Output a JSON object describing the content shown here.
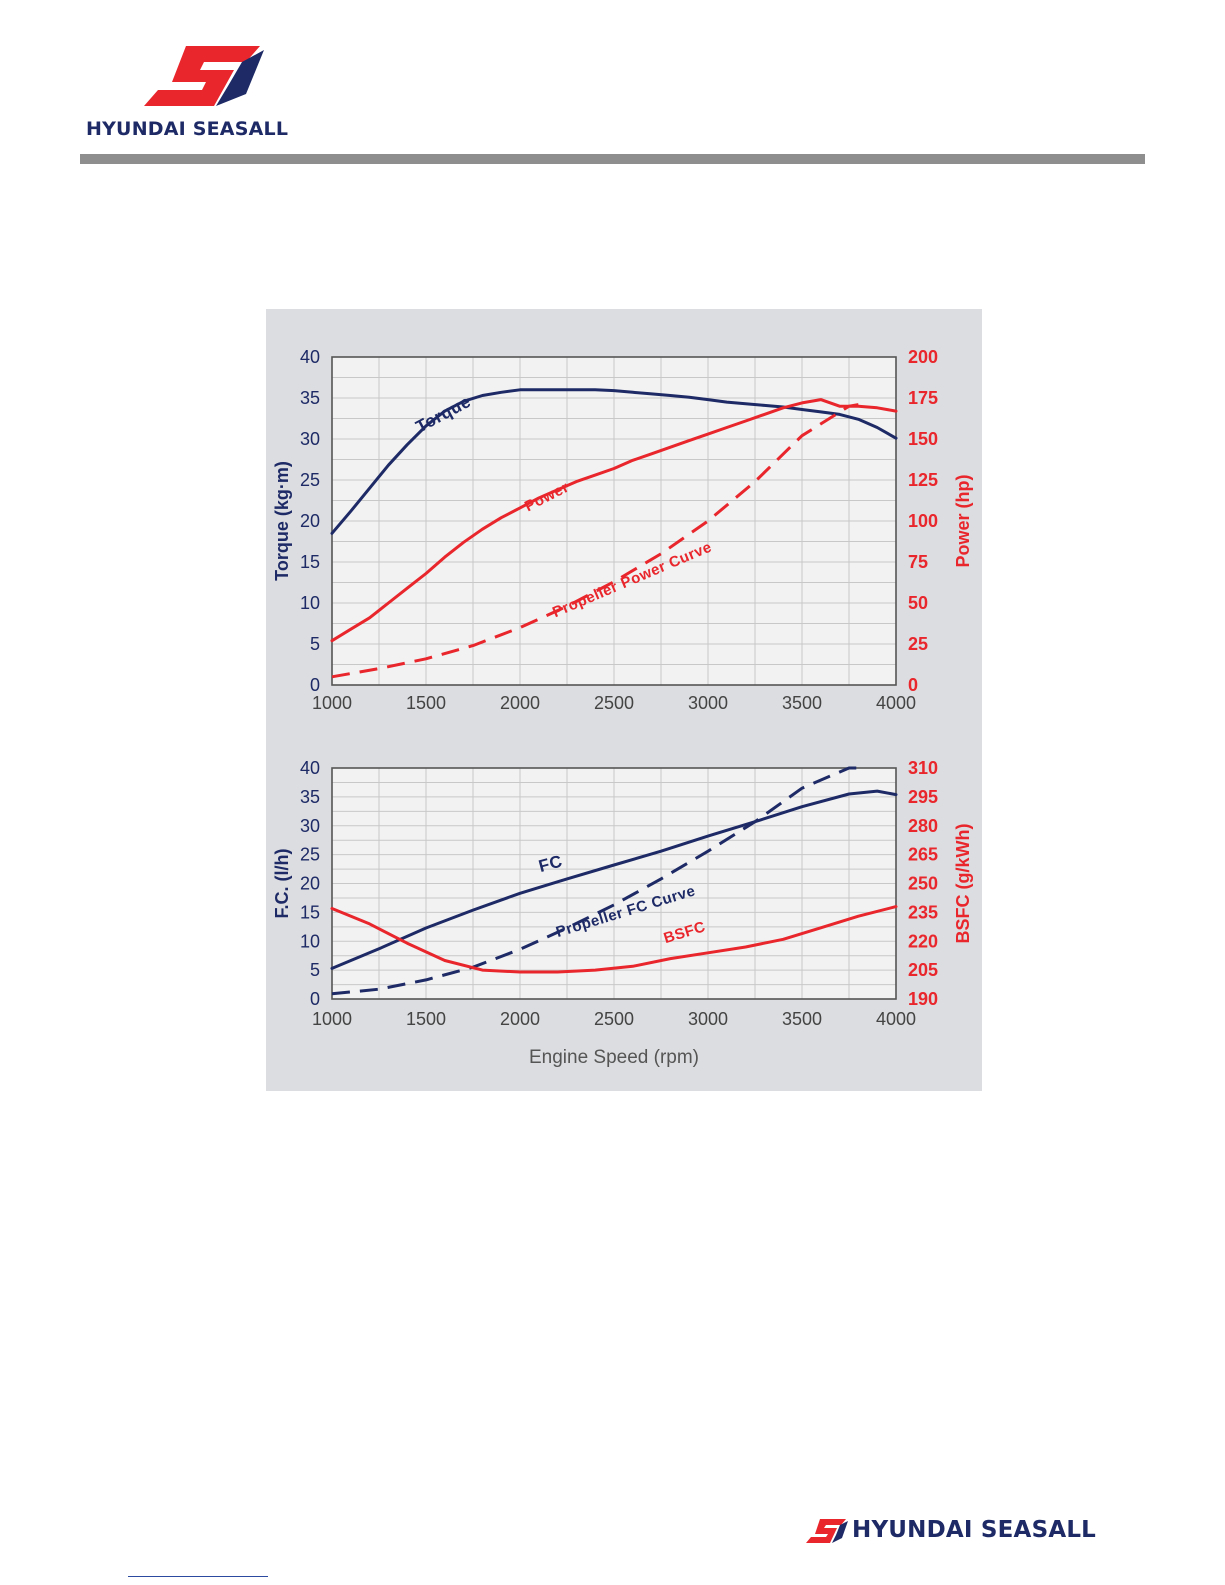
{
  "header": {
    "brand": "HYUNDAI SEASALL"
  },
  "footer": {
    "brand": "HYUNDAI SEASALL"
  },
  "colors": {
    "navy": "#1d2a66",
    "red": "#e8262c",
    "logo_red": "#e8262c",
    "panel_bg": "#dcdde0",
    "plot_bg": "#f2f2f2",
    "grid": "#c8c8c8"
  },
  "icons": {
    "top_logo": "seasall-emblem-icon",
    "bottom_logo": "seasall-emblem-icon"
  },
  "chart_data": [
    {
      "type": "line",
      "x_ticks": [
        "1000",
        "1500",
        "2000",
        "2500",
        "3000",
        "3500",
        "4000"
      ],
      "xlim": [
        1000,
        4000
      ],
      "y_left_label": "Torque (kg·m)",
      "y_left_ticks": [
        "0",
        "5",
        "10",
        "15",
        "20",
        "25",
        "30",
        "35",
        "40"
      ],
      "y_left_lim": [
        0,
        40
      ],
      "y_right_label": "Power (hp)",
      "y_right_ticks": [
        "0",
        "25",
        "50",
        "75",
        "100",
        "125",
        "150",
        "175",
        "200"
      ],
      "y_right_lim": [
        0,
        200
      ],
      "grid": true,
      "series": [
        {
          "name": "Torque",
          "axis": "left",
          "style": "solid",
          "color": "#1d2a66",
          "x": [
            1000,
            1100,
            1200,
            1300,
            1400,
            1500,
            1600,
            1700,
            1800,
            1900,
            2000,
            2100,
            2200,
            2300,
            2400,
            2500,
            2600,
            2700,
            2800,
            2900,
            3000,
            3100,
            3200,
            3300,
            3400,
            3500,
            3600,
            3700,
            3800,
            3900,
            4000
          ],
          "y": [
            18.5,
            21.2,
            24,
            26.8,
            29.3,
            31.6,
            33.4,
            34.6,
            35.3,
            35.7,
            36,
            36,
            36,
            36,
            36,
            35.9,
            35.7,
            35.5,
            35.3,
            35.1,
            34.8,
            34.5,
            34.3,
            34.1,
            33.9,
            33.6,
            33.3,
            33,
            32.4,
            31.4,
            30.1
          ]
        },
        {
          "name": "Power",
          "axis": "right",
          "style": "solid",
          "color": "#e8262c",
          "x": [
            1000,
            1100,
            1200,
            1300,
            1400,
            1500,
            1600,
            1700,
            1800,
            1900,
            2000,
            2100,
            2200,
            2300,
            2400,
            2500,
            2600,
            2700,
            2800,
            2900,
            3000,
            3100,
            3200,
            3300,
            3400,
            3500,
            3600,
            3700,
            3800,
            3900,
            4000
          ],
          "y": [
            27,
            34,
            41,
            50,
            59,
            68,
            78,
            87,
            95,
            102,
            108,
            114,
            119,
            124,
            128,
            132,
            137,
            141,
            145,
            149,
            153,
            157,
            161,
            165,
            169,
            172,
            174,
            170,
            170,
            169,
            167
          ]
        },
        {
          "name": "Propeller Power Curve",
          "axis": "right",
          "style": "dashed",
          "color": "#e8262c",
          "x": [
            1000,
            1250,
            1500,
            1750,
            2000,
            2250,
            2500,
            2750,
            3000,
            3250,
            3500,
            3750,
            3800
          ],
          "y": [
            5,
            10,
            16,
            24,
            35,
            48,
            63,
            80,
            100,
            124,
            152,
            170,
            171
          ]
        }
      ]
    },
    {
      "type": "line",
      "x_ticks": [
        "1000",
        "1500",
        "2000",
        "2500",
        "3000",
        "3500",
        "4000"
      ],
      "xlim": [
        1000,
        4000
      ],
      "xlabel": "Engine Speed (rpm)",
      "y_left_label": "F.C. (l/h)",
      "y_left_ticks": [
        "0",
        "5",
        "10",
        "15",
        "20",
        "25",
        "30",
        "35",
        "40"
      ],
      "y_left_lim": [
        0,
        40
      ],
      "y_right_label": "BSFC (g/kWh)",
      "y_right_ticks": [
        "190",
        "205",
        "220",
        "235",
        "250",
        "265",
        "280",
        "295",
        "310"
      ],
      "y_right_lim": [
        190,
        310
      ],
      "grid": true,
      "series": [
        {
          "name": "FC",
          "axis": "left",
          "style": "solid",
          "color": "#1d2a66",
          "x": [
            1000,
            1250,
            1500,
            1750,
            2000,
            2250,
            2500,
            2750,
            3000,
            3250,
            3500,
            3750,
            3900,
            4000
          ],
          "y": [
            5.3,
            8.7,
            12.3,
            15.4,
            18.3,
            20.8,
            23.2,
            25.6,
            28.2,
            30.7,
            33.3,
            35.5,
            36,
            35.4
          ]
        },
        {
          "name": "Propeller FC Curve",
          "axis": "left",
          "style": "dashed",
          "color": "#1d2a66",
          "x": [
            1000,
            1250,
            1500,
            1750,
            2000,
            2250,
            2500,
            2750,
            3000,
            3250,
            3500,
            3750,
            3800
          ],
          "y": [
            0.9,
            1.7,
            3.3,
            5.5,
            8.6,
            12.3,
            16.3,
            20.8,
            25.6,
            30.7,
            36.5,
            40,
            40
          ]
        },
        {
          "name": "BSFC",
          "axis": "right",
          "style": "solid",
          "color": "#e8262c",
          "x": [
            1000,
            1200,
            1400,
            1600,
            1800,
            2000,
            2200,
            2400,
            2600,
            2800,
            3000,
            3200,
            3400,
            3600,
            3800,
            4000
          ],
          "y": [
            237,
            229,
            219,
            210,
            205,
            204,
            204,
            205,
            207,
            211,
            214,
            217,
            221,
            227,
            233,
            238
          ]
        }
      ]
    }
  ]
}
